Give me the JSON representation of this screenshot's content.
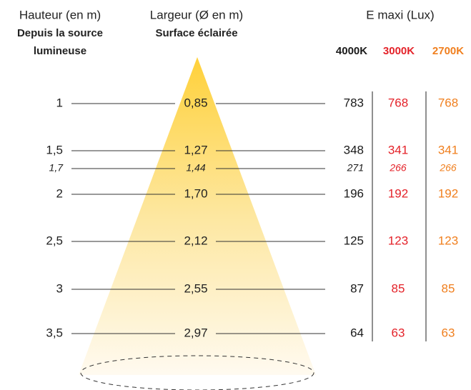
{
  "headers": {
    "height": {
      "title": "Hauteur (en m)",
      "subtitle": [
        "Depuis la source",
        "lumineuse"
      ]
    },
    "width": {
      "title": "Largeur (Ø en m)",
      "subtitle": "Surface éclairée"
    },
    "lux": {
      "title": "E maxi (Lux)",
      "columns": [
        {
          "label": "4000K",
          "color": "#1a1a1a"
        },
        {
          "label": "3000K",
          "color": "#e42229"
        },
        {
          "label": "2700K",
          "color": "#f07f1e"
        }
      ]
    }
  },
  "rows": [
    {
      "height": "1",
      "width": "0,85",
      "lux": [
        "783",
        "768",
        "768"
      ],
      "italic": false
    },
    {
      "height": "1,5",
      "width": "1,27",
      "lux": [
        "348",
        "341",
        "341"
      ],
      "italic": false
    },
    {
      "height": "1,7",
      "width": "1,44",
      "lux": [
        "271",
        "266",
        "266"
      ],
      "italic": true
    },
    {
      "height": "2",
      "width": "1,70",
      "lux": [
        "196",
        "192",
        "192"
      ],
      "italic": false
    },
    {
      "height": "2,5",
      "width": "2,12",
      "lux": [
        "125",
        "123",
        "123"
      ],
      "italic": false
    },
    {
      "height": "3",
      "width": "2,55",
      "lux": [
        "87",
        "85",
        "85"
      ],
      "italic": false
    },
    {
      "height": "3,5",
      "width": "2,97",
      "lux": [
        "64",
        "63",
        "63"
      ],
      "italic": false
    }
  ]
}
